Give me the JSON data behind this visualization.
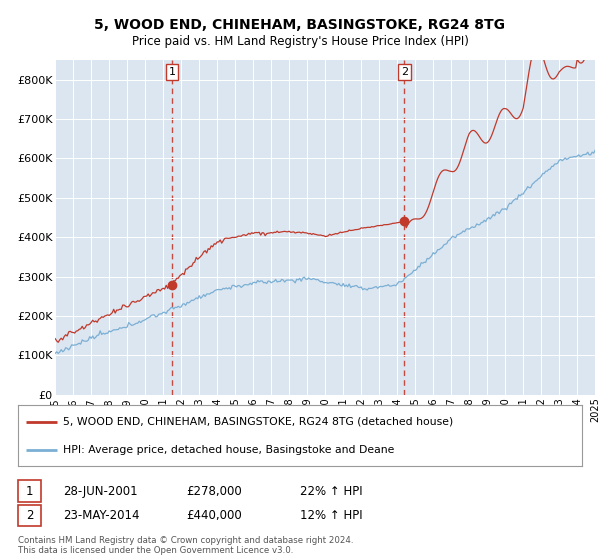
{
  "title": "5, WOOD END, CHINEHAM, BASINGSTOKE, RG24 8TG",
  "subtitle": "Price paid vs. HM Land Registry's House Price Index (HPI)",
  "legend_line1": "5, WOOD END, CHINEHAM, BASINGSTOKE, RG24 8TG (detached house)",
  "legend_line2": "HPI: Average price, detached house, Basingstoke and Deane",
  "footnote": "Contains HM Land Registry data © Crown copyright and database right 2024.\nThis data is licensed under the Open Government Licence v3.0.",
  "annotation1_date": "28-JUN-2001",
  "annotation1_price": "£278,000",
  "annotation1_hpi": "22% ↑ HPI",
  "annotation2_date": "23-MAY-2014",
  "annotation2_price": "£440,000",
  "annotation2_hpi": "12% ↑ HPI",
  "ylim": [
    0,
    850000
  ],
  "yticks": [
    0,
    100000,
    200000,
    300000,
    400000,
    500000,
    600000,
    700000,
    800000
  ],
  "ytick_labels": [
    "£0",
    "£100K",
    "£200K",
    "£300K",
    "£400K",
    "£500K",
    "£600K",
    "£700K",
    "£800K"
  ],
  "bg_color": "#dce6f1",
  "red_color": "#c0392b",
  "blue_color": "#7bafd4",
  "vline_color": "#c0392b",
  "sale1_x": 2001.49,
  "sale1_y": 278000,
  "sale2_x": 2014.39,
  "sale2_y": 440000,
  "xmin": 1995,
  "xmax": 2025
}
